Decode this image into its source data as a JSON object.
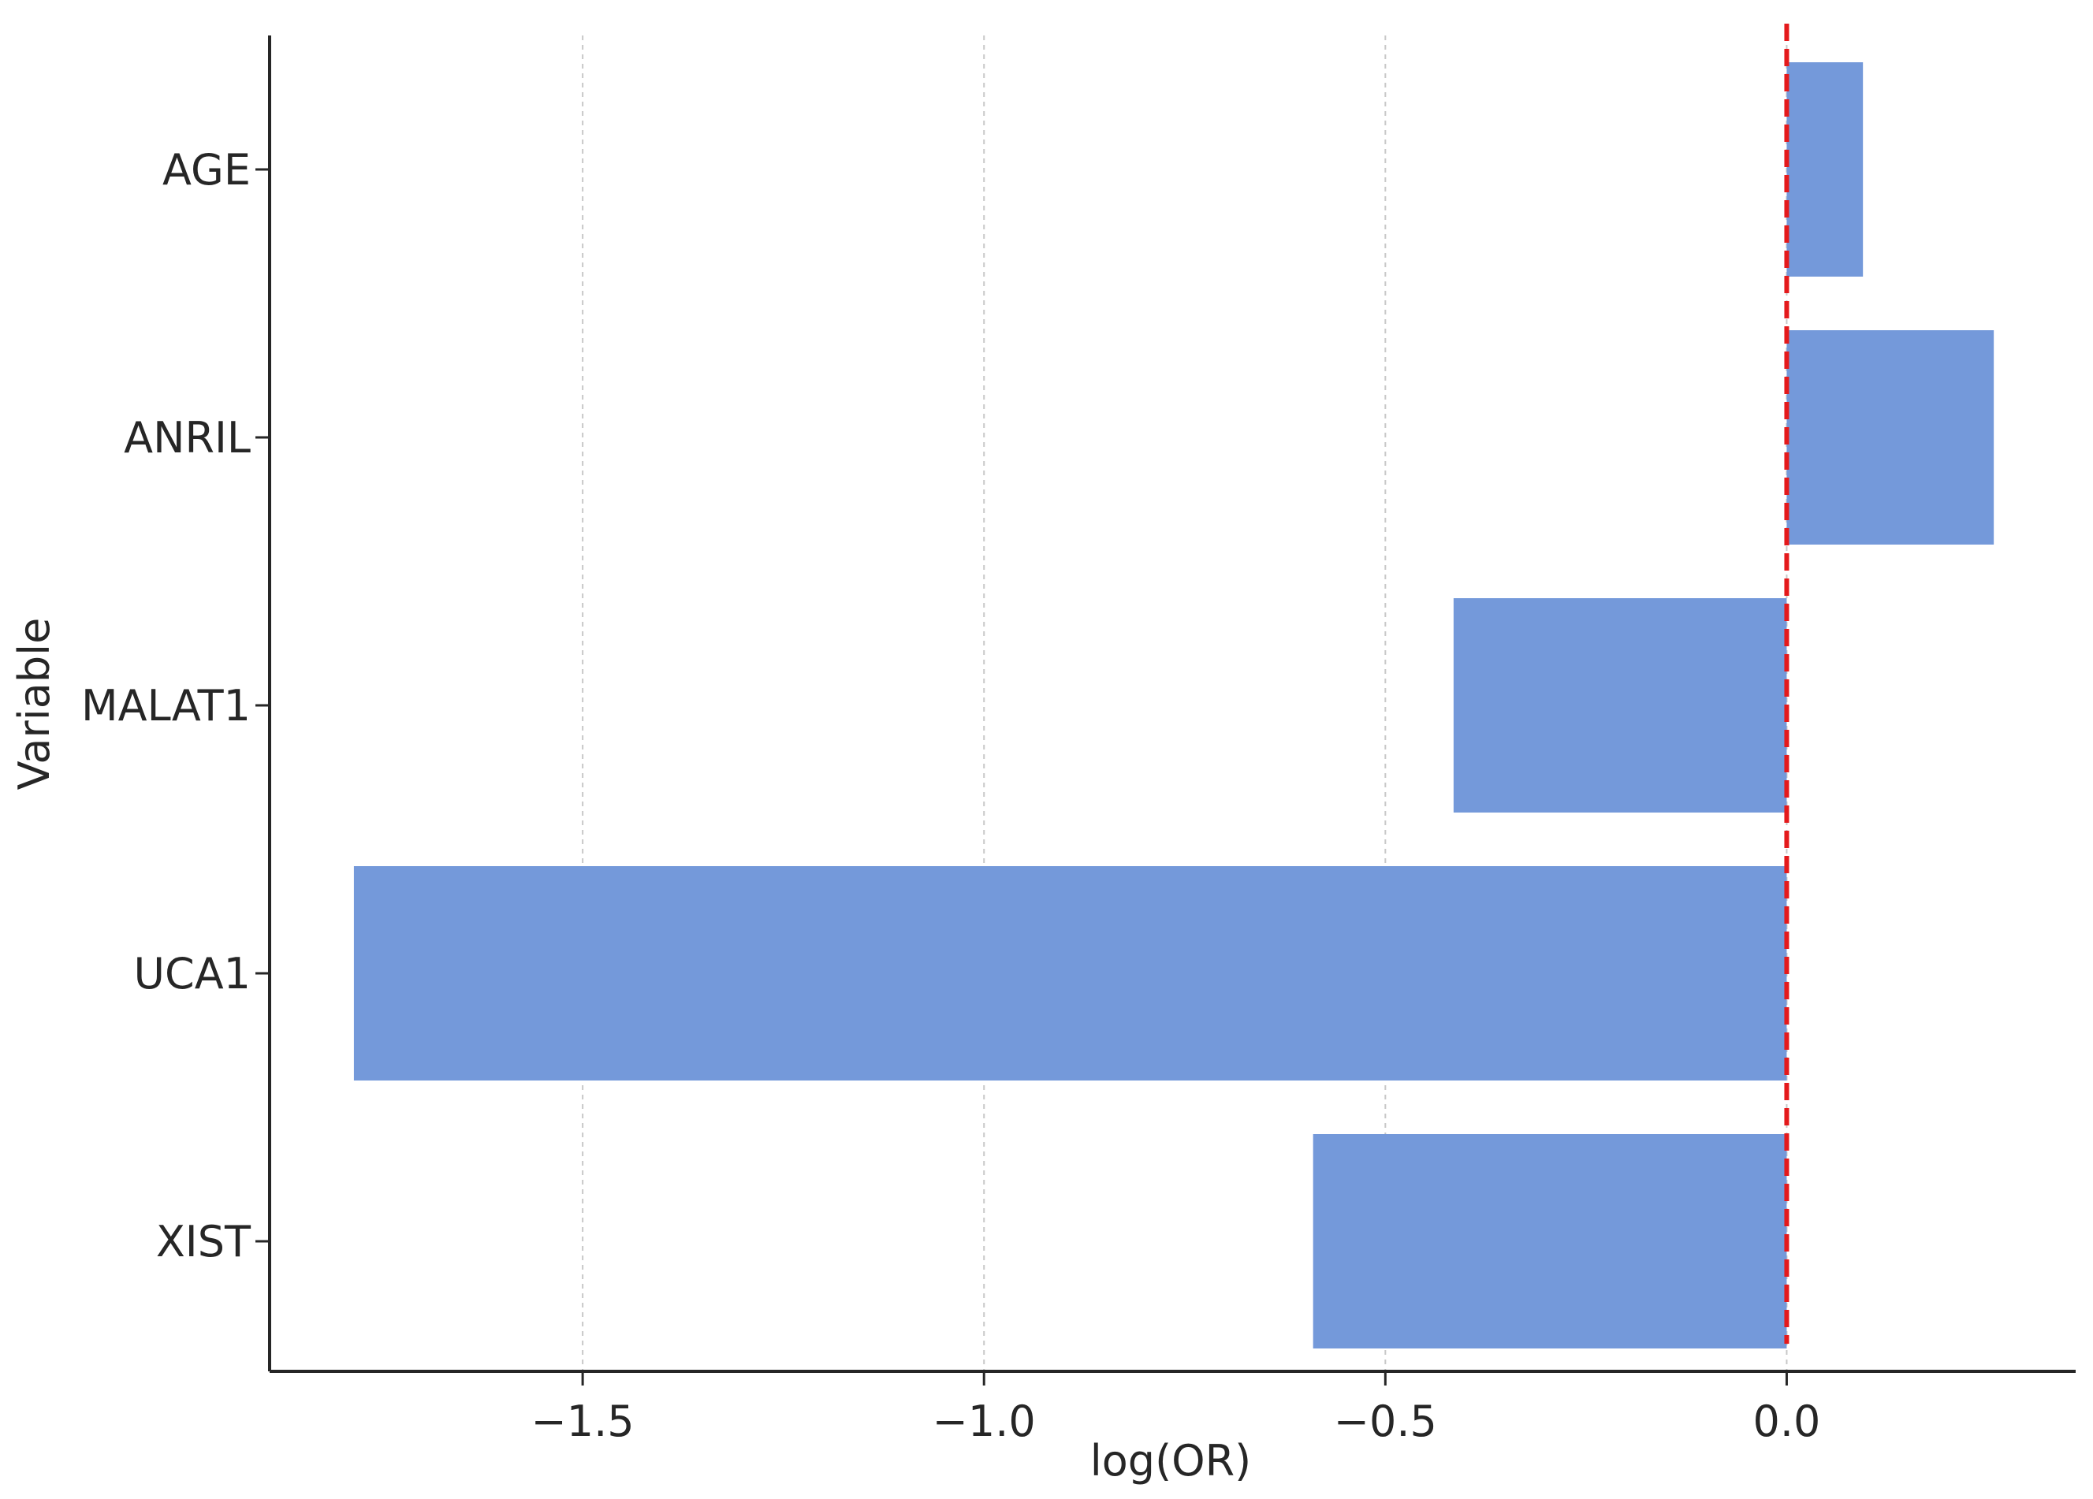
{
  "chart_data": {
    "type": "bar",
    "orientation": "horizontal",
    "categories": [
      "AGE",
      "ANRIL",
      "MALAT1",
      "UCA1",
      "XIST"
    ],
    "values": [
      0.095,
      0.258,
      -0.415,
      -1.785,
      -0.59
    ],
    "title": "",
    "xlabel": "log(OR)",
    "ylabel": "Variable",
    "xlim": [
      -1.89,
      0.36
    ],
    "xticks": [
      -1.5,
      -1.0,
      -0.5,
      0.0
    ],
    "xtick_labels": [
      "−1.5",
      "−1.0",
      "−0.5",
      "0.0"
    ],
    "grid": "vertical dashed",
    "reference_line": {
      "x": 0.0,
      "style": "dashed",
      "color": "#e41a1c"
    },
    "bar_color": "#7499da",
    "axis_color": "#262626",
    "grid_color": "#c8c8c8"
  }
}
